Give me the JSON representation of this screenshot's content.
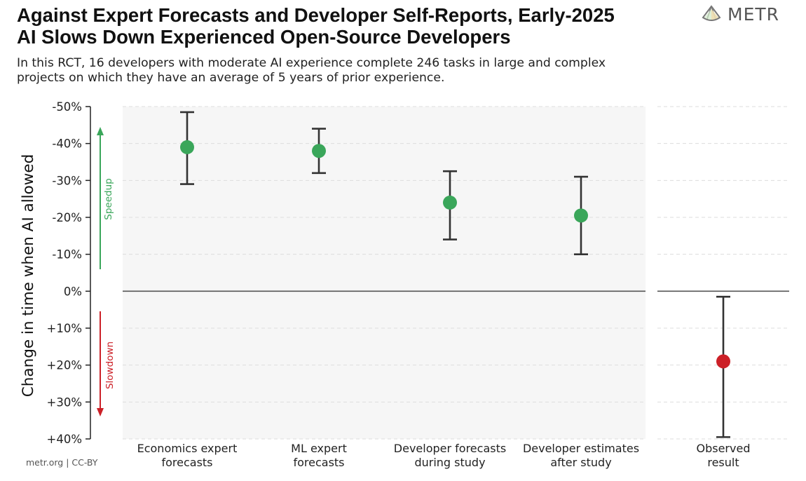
{
  "header": {
    "title_line1": "Against Expert Forecasts and Developer Self-Reports, Early-2025",
    "title_line2": "AI Slows Down Experienced Open-Source Developers",
    "subtitle_line1": "In this RCT, 16 developers with moderate AI experience complete 246 tasks in large and complex",
    "subtitle_line2": "projects on which they have an average of 5 years of prior experience."
  },
  "logo": {
    "text": "METR",
    "icon": "metr-logo-icon"
  },
  "footer": {
    "text": "metr.org  |  CC-BY"
  },
  "colors": {
    "speedup": "#3aa65a",
    "slowdown": "#cc2027",
    "panel": "#f6f6f6",
    "errorbar": "#333333"
  },
  "chart_data": {
    "type": "scatter",
    "ylabel": "Change in time when AI allowed",
    "ylim": [
      -50,
      40
    ],
    "y_inverted": true,
    "yticks": [
      -50,
      -40,
      -30,
      -20,
      -10,
      0,
      10,
      20,
      30,
      40
    ],
    "ytick_labels": [
      "-50%",
      "-40%",
      "-30%",
      "-20%",
      "-10%",
      "0%",
      "+10%",
      "+20%",
      "+30%",
      "+40%"
    ],
    "grid": true,
    "zero_line": 0,
    "speedup_label": "Speedup",
    "slowdown_label": "Slowdown",
    "panels": [
      {
        "name": "forecasts",
        "points": [
          {
            "label_line1": "Economics expert",
            "label_line2": "forecasts",
            "value": -39,
            "ci_low": -48.5,
            "ci_high": -29,
            "color": "#3aa65a"
          },
          {
            "label_line1": "ML expert",
            "label_line2": "forecasts",
            "value": -38,
            "ci_low": -44,
            "ci_high": -32,
            "color": "#3aa65a"
          },
          {
            "label_line1": "Developer forecasts",
            "label_line2": "during study",
            "value": -24,
            "ci_low": -32.5,
            "ci_high": -14,
            "color": "#3aa65a"
          },
          {
            "label_line1": "Developer estimates",
            "label_line2": "after study",
            "value": -20.5,
            "ci_low": -31,
            "ci_high": -10,
            "color": "#3aa65a"
          }
        ]
      },
      {
        "name": "observed",
        "points": [
          {
            "label_line1": "Observed",
            "label_line2": "result",
            "value": 19,
            "ci_low": 1.5,
            "ci_high": 39.5,
            "color": "#cc2027"
          }
        ]
      }
    ]
  }
}
